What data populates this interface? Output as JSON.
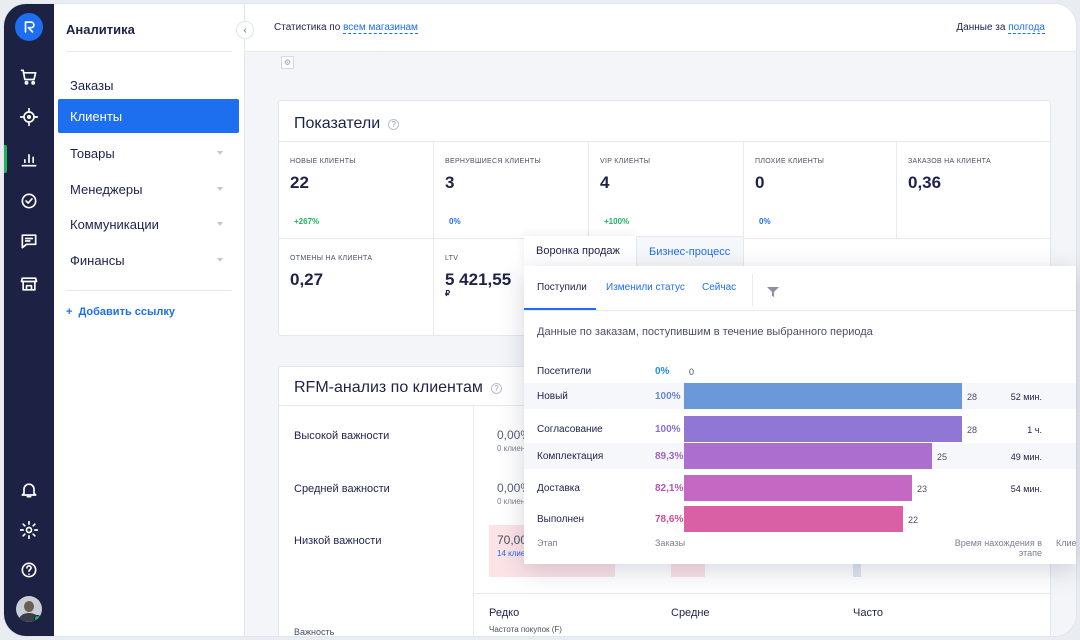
{
  "app": {
    "rail_icons": [
      "logo-icon",
      "cart-icon",
      "target-icon",
      "bar-chart-icon",
      "check-circle-icon",
      "chat-icon",
      "store-icon",
      "bell-icon",
      "gear-icon",
      "help-icon",
      "avatar"
    ],
    "accent_color": "#1e6ef0",
    "rail_color": "#1d2245",
    "positive_color": "#22b35e"
  },
  "sidebar": {
    "title": "Аналитика",
    "items": [
      {
        "label": "Заказы",
        "has_chevron": false
      },
      {
        "label": "Клиенты",
        "has_chevron": false,
        "active": true
      },
      {
        "label": "Товары",
        "has_chevron": true
      },
      {
        "label": "Менеджеры",
        "has_chevron": true
      },
      {
        "label": "Коммуникации",
        "has_chevron": true
      },
      {
        "label": "Финансы",
        "has_chevron": true
      }
    ],
    "add_link": "Добавить ссылку",
    "add_plus": "+"
  },
  "topbar": {
    "left_prefix": "Статистика по",
    "left_link": "всем магазинам",
    "right_prefix": "Данные за",
    "right_link": "полгода"
  },
  "metrics_card": {
    "title": "Показатели",
    "help": "?",
    "row1": [
      {
        "label": "НОВЫЕ КЛИЕНТЫ",
        "value": "22",
        "change": "+267%",
        "change_color": "#22b35e"
      },
      {
        "label": "ВЕРНУВШИЕСЯ КЛИЕНТЫ",
        "value": "3",
        "change": "0%",
        "change_color": "#1e6ef0"
      },
      {
        "label": "VIP КЛИЕНТЫ",
        "value": "4",
        "change": "+100%",
        "change_color": "#22b35e"
      },
      {
        "label": "ПЛОХИЕ КЛИЕНТЫ",
        "value": "0",
        "change": "0%",
        "change_color": "#1e6ef0"
      },
      {
        "label": "ЗАКАЗОВ НА КЛИЕНТА",
        "value": "0,36",
        "change": "",
        "change_color": ""
      }
    ],
    "row2": [
      {
        "label": "ОТМЕНЫ НА КЛИЕНТА",
        "value": "0,27",
        "sub": ""
      },
      {
        "label": "LTV",
        "value": "5 421,55",
        "sub": "₽"
      }
    ]
  },
  "rfm": {
    "title": "RFM-анализ по клиентам",
    "help": "?",
    "rows": [
      "Высокой важности",
      "Средней важности",
      "Низкой важности"
    ],
    "cells": [
      {
        "value": "0,00%",
        "sub": "0 клиен"
      },
      {
        "value": "0,00%",
        "sub": "0 клиен"
      },
      {
        "value": "70,00",
        "sub": "14 клие"
      }
    ],
    "y_axis_label": "Важность",
    "x_axis_values": [
      "Редко",
      "Средне",
      "Часто"
    ],
    "x_axis_label": "Частота покупок (F)"
  },
  "funnel": {
    "tabs": [
      "Воронка продаж",
      "Бизнес-процесс"
    ],
    "subtabs": [
      "Поступили",
      "Изменили статус",
      "Сейчас"
    ],
    "filter_icon": "filter-icon",
    "description": "Данные по заказам, поступившим в течение выбранного периода",
    "stages": [
      {
        "name": "Посетители",
        "pct": "0%",
        "fraction": 0,
        "count": "0",
        "time": "",
        "color": "#1e8fe0",
        "pct_color": "#1e8fe0"
      },
      {
        "name": "Новый",
        "pct": "100%",
        "fraction": 1.0,
        "count": "28",
        "time": "52 мин.",
        "color": "#6a98d8",
        "pct_color": "#6a86cf"
      },
      {
        "name": "Согласование",
        "pct": "100%",
        "fraction": 1.0,
        "count": "28",
        "time": "1 ч.",
        "color": "#9077d6",
        "pct_color": "#8b6fd0"
      },
      {
        "name": "Комплектация",
        "pct": "89,3%",
        "fraction": 0.893,
        "count": "25",
        "time": "49 мин.",
        "color": "#ad6fcf",
        "pct_color": "#a064c8"
      },
      {
        "name": "Доставка",
        "pct": "82,1%",
        "fraction": 0.821,
        "count": "23",
        "time": "54 мин.",
        "color": "#c468c4",
        "pct_color": "#b653b4"
      },
      {
        "name": "Выполнен",
        "pct": "78,6%",
        "fraction": 0.786,
        "count": "22",
        "time": "",
        "color": "#d960a5",
        "pct_color": "#cc4c94"
      }
    ],
    "footer": {
      "stage": "Этап",
      "orders": "Заказы",
      "time": "Время нахождения в этапе",
      "clients": "Клие"
    }
  }
}
